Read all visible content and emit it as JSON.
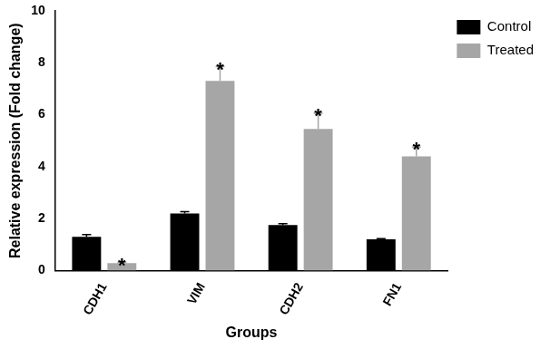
{
  "chart_data": {
    "type": "bar",
    "categories": [
      "CDH1",
      "VIM",
      "CDH2",
      "FN1"
    ],
    "series": [
      {
        "name": "Control",
        "color": "#000000",
        "values": [
          1.3,
          2.2,
          1.75,
          1.2
        ],
        "errors": [
          0.08,
          0.07,
          0.05,
          0.03
        ]
      },
      {
        "name": "Treated",
        "color": "#a6a6a6",
        "values": [
          0.28,
          7.3,
          5.45,
          4.4
        ],
        "errors": [
          0.03,
          0.55,
          0.6,
          0.35
        ]
      }
    ],
    "x_label": "Groups",
    "y_label": "Relative expression (Fold change)",
    "ylim": [
      0,
      10
    ],
    "yticks": [
      0,
      2,
      4,
      6,
      8,
      10
    ],
    "grid": false,
    "legend": "right",
    "annotations": [
      {
        "series": "Treated",
        "category": "CDH1",
        "text": "*"
      },
      {
        "series": "Treated",
        "category": "VIM",
        "text": "*"
      },
      {
        "series": "Treated",
        "category": "CDH2",
        "text": "*"
      },
      {
        "series": "Treated",
        "category": "FN1",
        "text": "*"
      }
    ]
  }
}
